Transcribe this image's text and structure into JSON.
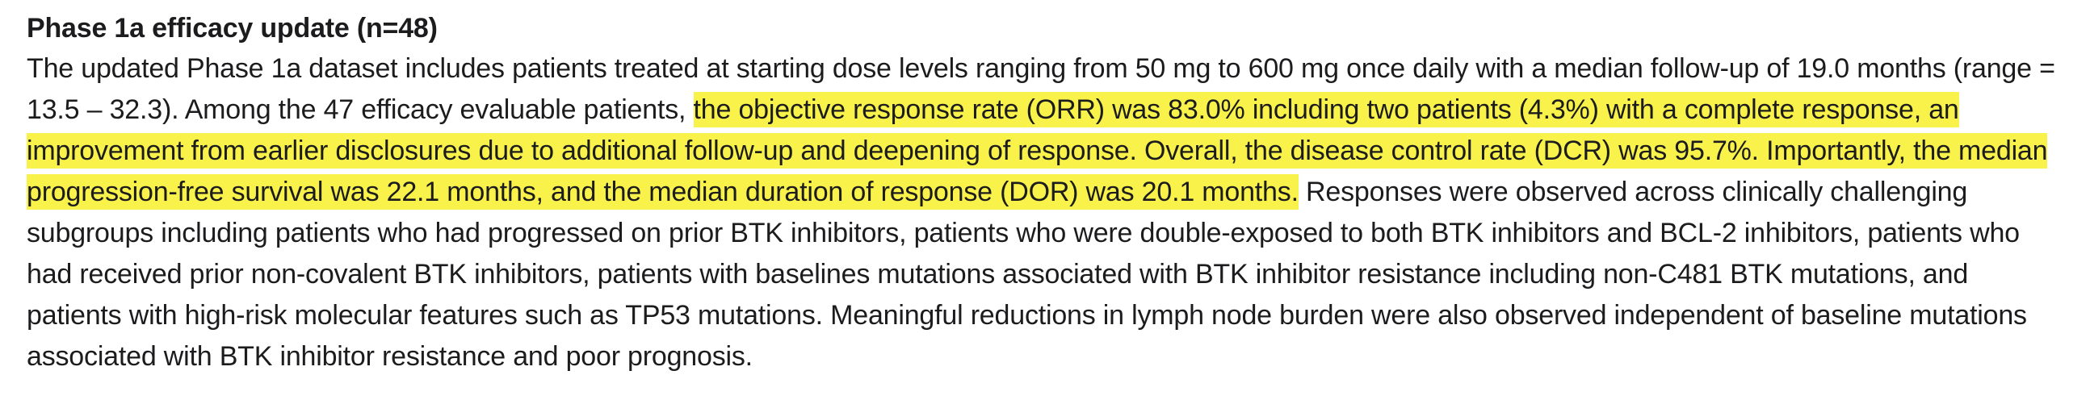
{
  "page": {
    "background_color": "#ffffff",
    "text_color": "#1c1c1e",
    "highlight_color": "#f8f24b"
  },
  "document": {
    "heading": "Phase 1a efficacy update (n=48)",
    "paragraph": {
      "pre_highlight": "The updated Phase 1a dataset includes patients treated at starting dose levels ranging from 50 mg to 600 mg once daily with a median follow-up of 19.0 months (range = 13.5 – 32.3). Among the 47 efficacy evaluable patients, ",
      "highlighted": "the objective response rate (ORR) was 83.0% including two patients (4.3%) with a complete response, an improvement from earlier disclosures due to additional follow-up and deepening of response. Overall, the disease control rate (DCR) was 95.7%. Importantly, the median progression-free survival was 22.1 months, and the median duration of response (DOR) was 20.1 months.",
      "post_highlight": " Responses were observed across clinically challenging subgroups including patients who had progressed on prior BTK inhibitors, patients who were double-exposed to both BTK inhibitors and BCL-2 inhibitors, patients who had received prior non-covalent BTK inhibitors, patients with baselines mutations associated with BTK inhibitor resistance including non-C481 BTK mutations, and patients with high-risk molecular features such as TP53 mutations. Meaningful reductions in lymph node burden were also observed independent of baseline mutations associated with BTK inhibitor resistance and poor prognosis."
    }
  }
}
